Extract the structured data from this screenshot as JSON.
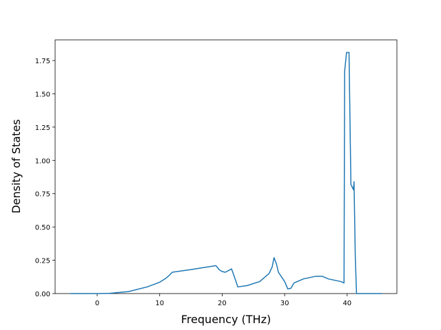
{
  "chart_data": {
    "type": "line",
    "x_label": "Frequency (THz)",
    "y_label": "Density of States",
    "x": [
      -4.3,
      0,
      2,
      5,
      8,
      10,
      11,
      11.5,
      12,
      15,
      19,
      19.5,
      20,
      20.5,
      21.5,
      22,
      22.5,
      24,
      26,
      27.5,
      28,
      28.3,
      28.7,
      29,
      30,
      30.5,
      31,
      31.5,
      33,
      35,
      36,
      37,
      39,
      39.5,
      39.6,
      39.9,
      40.3,
      40.6,
      41,
      41.1,
      41.3,
      41.5,
      45.6
    ],
    "series": [
      {
        "color": "#1f77b4",
        "values": [
          0,
          0,
          0.002,
          0.015,
          0.05,
          0.085,
          0.115,
          0.135,
          0.16,
          0.18,
          0.21,
          0.18,
          0.165,
          0.16,
          0.185,
          0.12,
          0.05,
          0.06,
          0.09,
          0.15,
          0.2,
          0.27,
          0.22,
          0.16,
          0.09,
          0.035,
          0.04,
          0.08,
          0.11,
          0.13,
          0.13,
          0.11,
          0.09,
          0.08,
          1.67,
          1.81,
          1.81,
          0.82,
          0.78,
          0.84,
          0.28,
          0,
          0
        ]
      }
    ],
    "xlim": [
      -6.73,
      47.96
    ],
    "xticks": [
      0,
      10,
      20,
      30,
      40
    ],
    "ylim": [
      0,
      1.905
    ],
    "yticks": [
      {
        "value": 0,
        "label": "0.00"
      },
      {
        "value": 0.25,
        "label": "0.25"
      },
      {
        "value": 0.5,
        "label": "0.50"
      },
      {
        "value": 0.75,
        "label": "0.75"
      },
      {
        "value": 1,
        "label": "1.00"
      },
      {
        "value": 1.25,
        "label": "1.25"
      },
      {
        "value": 1.5,
        "label": "1.50"
      },
      {
        "value": 1.75,
        "label": "1.75"
      }
    ],
    "grid": false
  }
}
